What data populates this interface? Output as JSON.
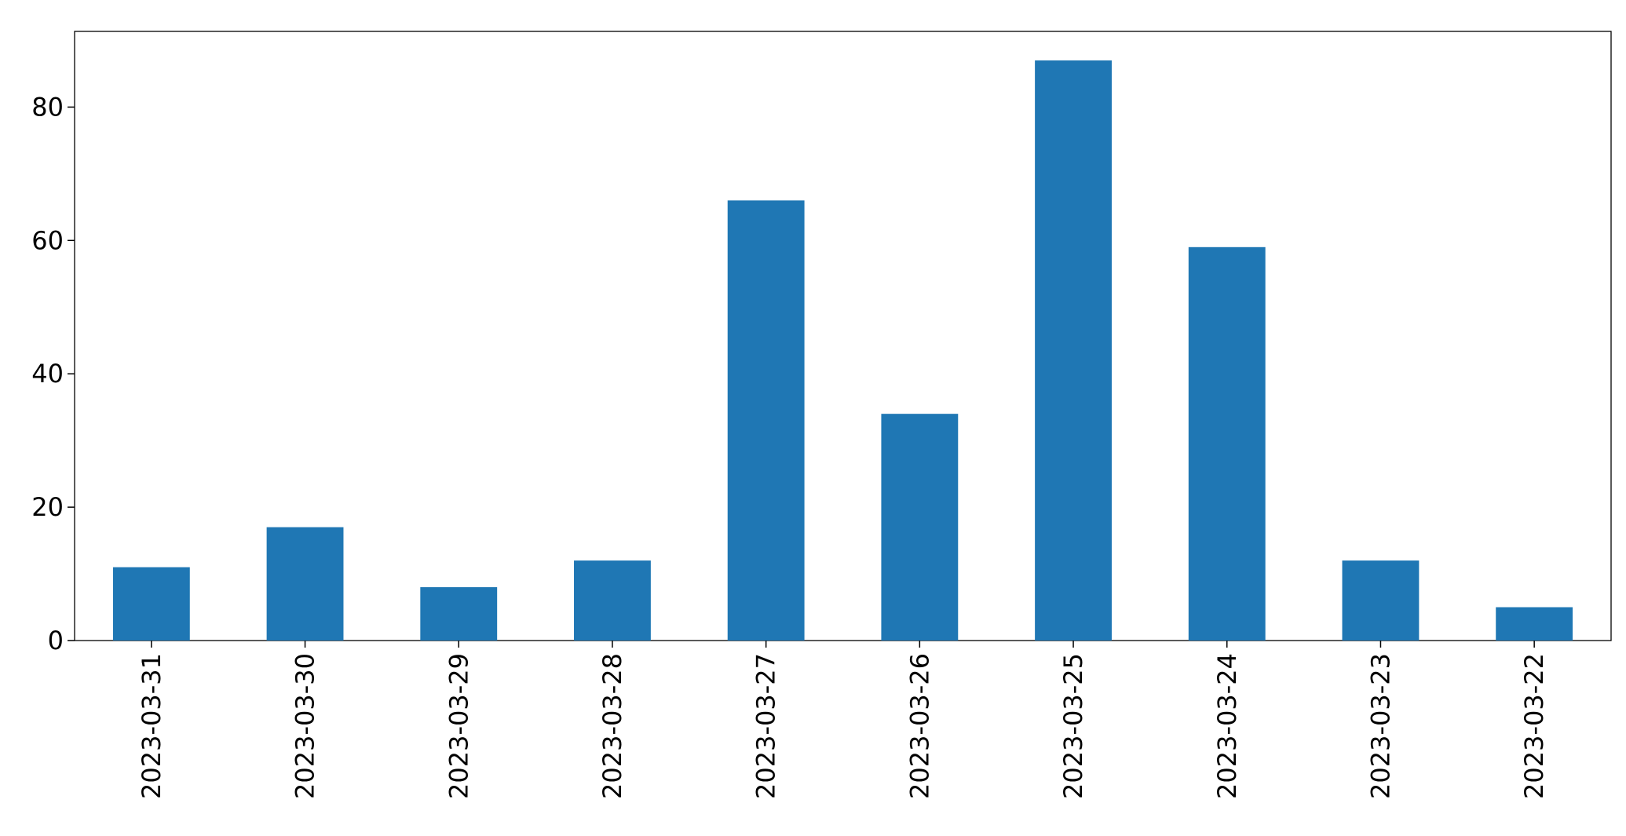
{
  "chart_data": {
    "type": "bar",
    "categories": [
      "2023-03-31",
      "2023-03-30",
      "2023-03-29",
      "2023-03-28",
      "2023-03-27",
      "2023-03-26",
      "2023-03-25",
      "2023-03-24",
      "2023-03-23",
      "2023-03-22"
    ],
    "values": [
      11,
      17,
      8,
      12,
      66,
      34,
      87,
      59,
      12,
      5
    ],
    "color": "#1f77b4",
    "ylim": [
      0,
      91.35
    ],
    "yticks": [
      0,
      20,
      40,
      60,
      80
    ],
    "grid": false
  }
}
